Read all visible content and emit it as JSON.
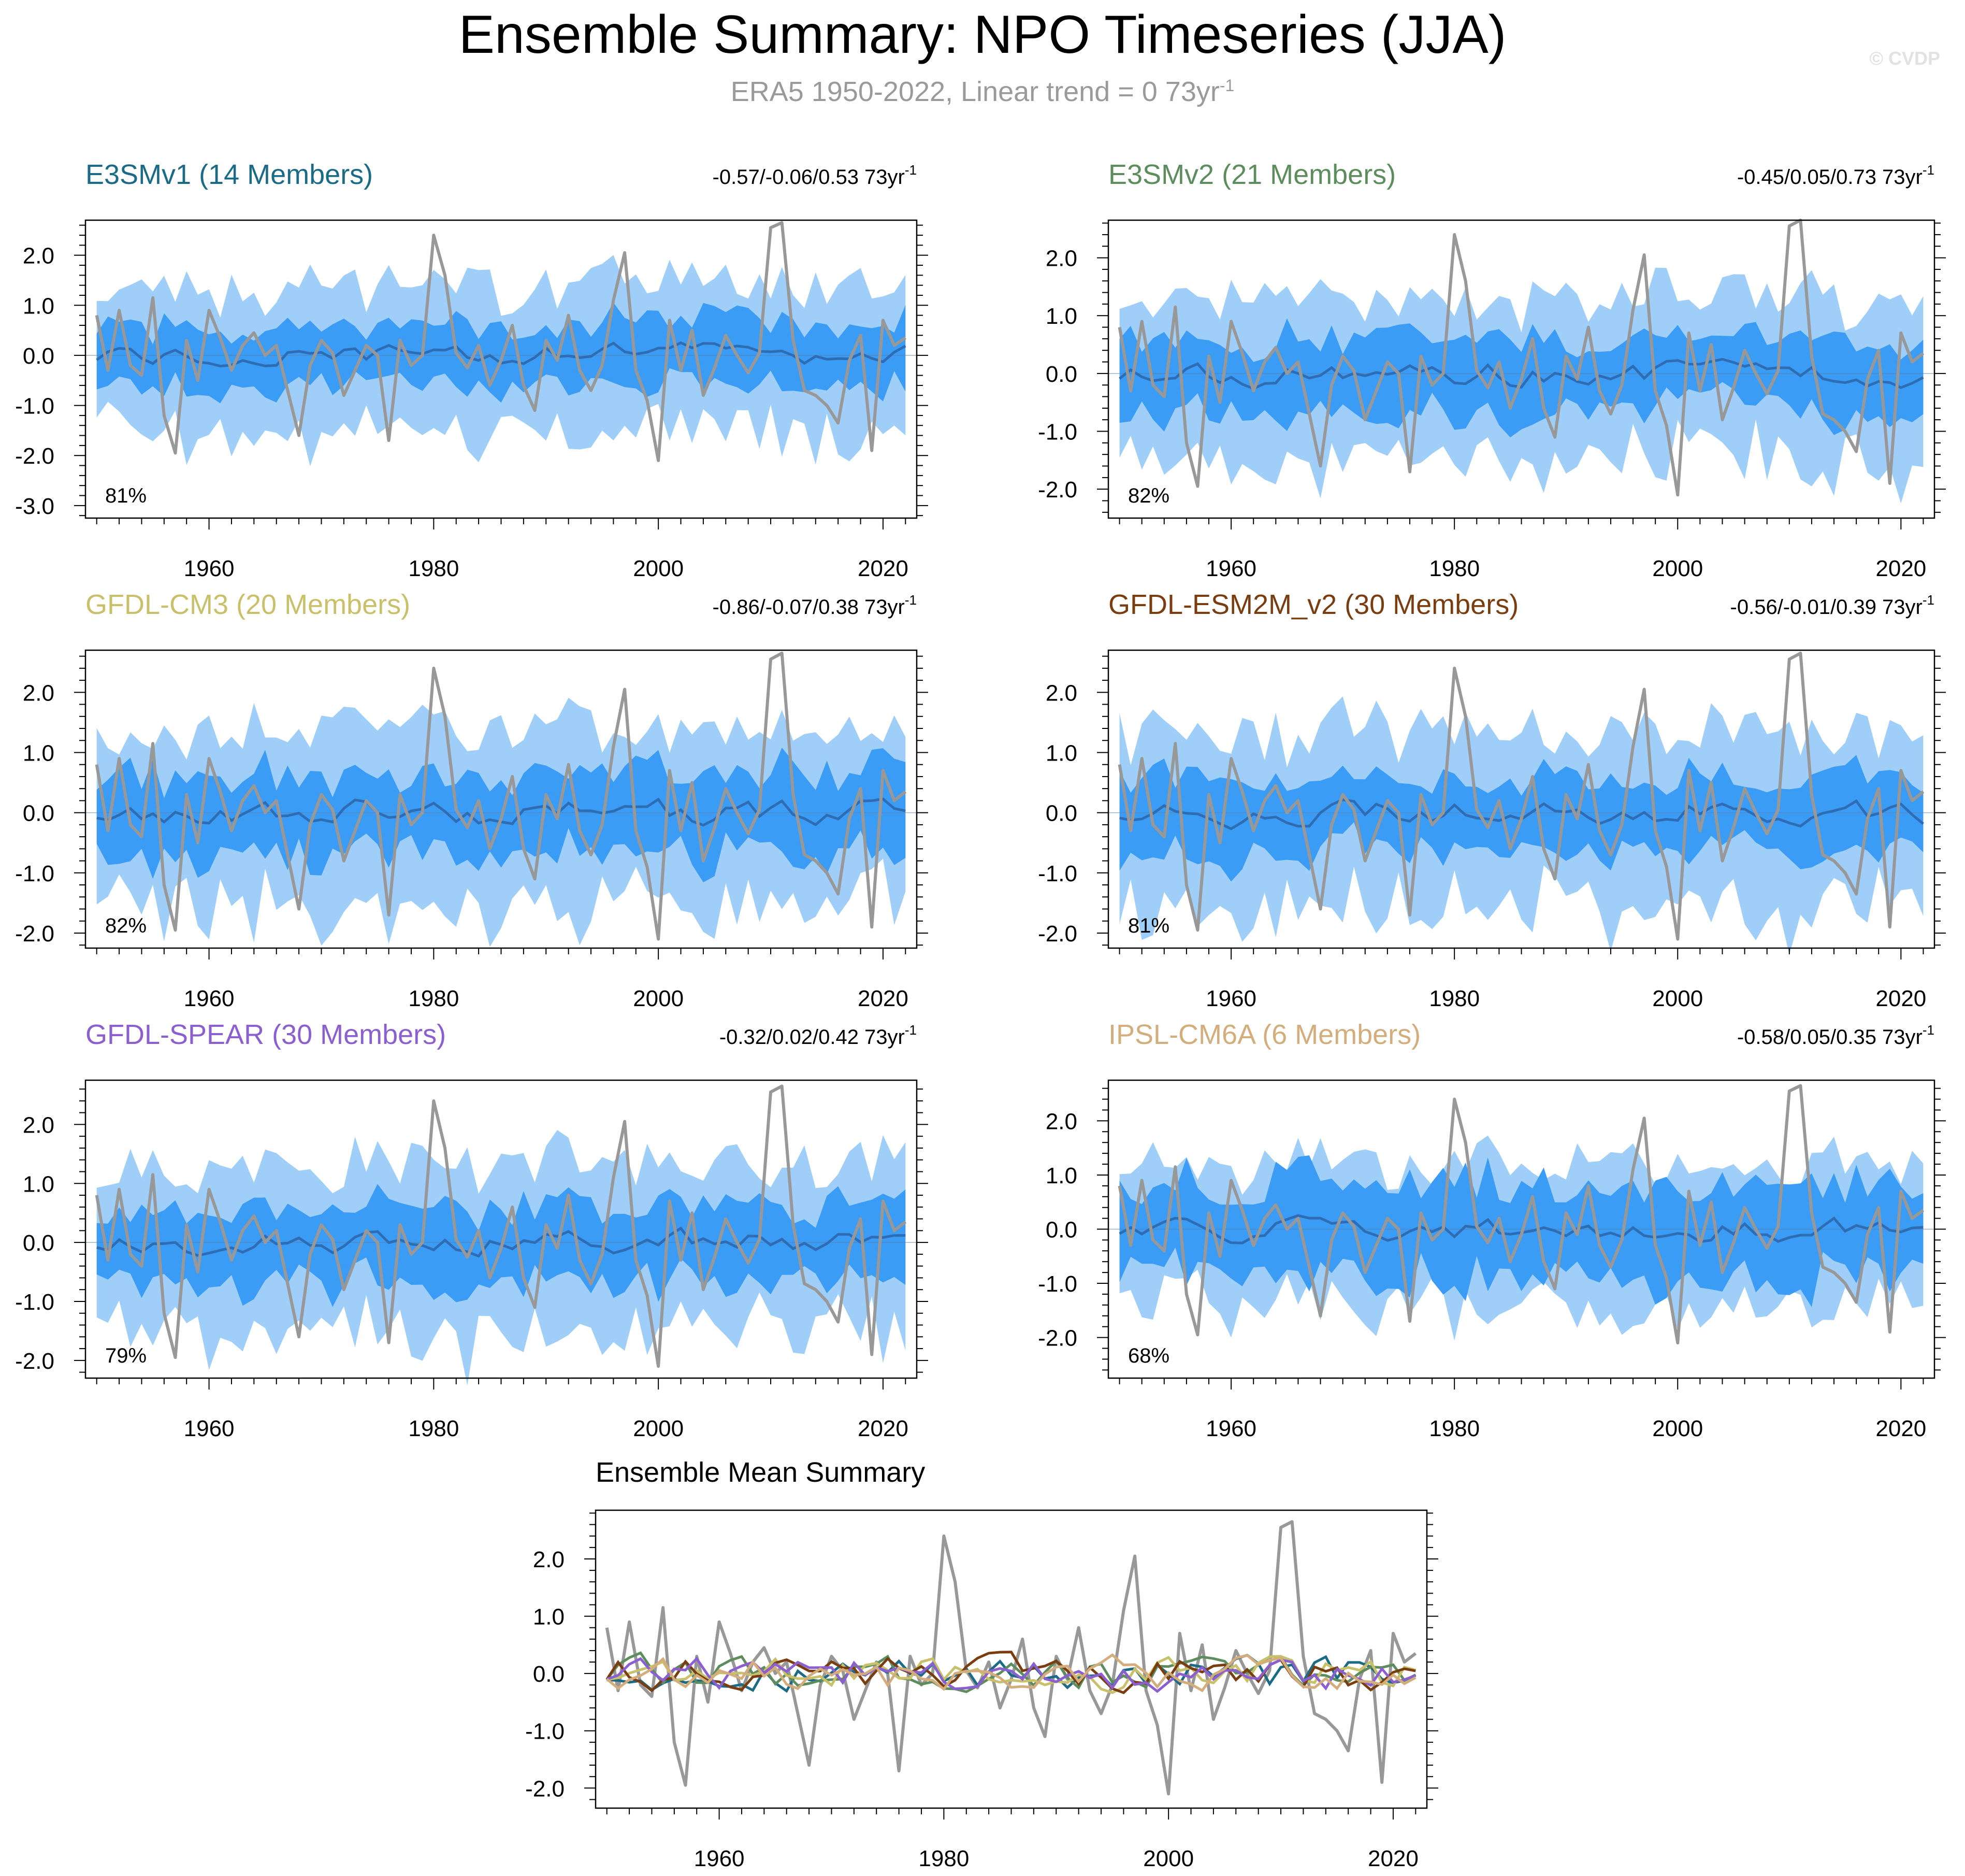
{
  "title": "Ensemble Summary: NPO Timeseries (JJA)",
  "subtitle": {
    "text": "ERA5 1950-2022, Linear trend = 0 73yr",
    "exp": "-1"
  },
  "watermark": "© CVDP",
  "colors": {
    "outer_band": "#9fcff8",
    "inner_band": "#3b9cf5",
    "ens_mean": "#2e6db4",
    "obs": "#989898"
  },
  "chart_data": [
    {
      "id": "e3smv1",
      "type": "line",
      "title": "E3SMv1 (14 Members)",
      "title_color": "#1c6b86",
      "trend_label": "-0.57/-0.06/0.53 73yr",
      "trend_exp": "-1",
      "pct_label": "81%",
      "ylim": [
        -3.25,
        2.7
      ],
      "yticks": [
        2.0,
        1.0,
        0.0,
        -1.0,
        -2.0,
        -3.0
      ],
      "ytick_labels": [
        "2.0",
        "1.0",
        "0.0",
        "-1.0",
        "-2.0",
        "-3.0"
      ],
      "xlim": [
        1949,
        2023
      ],
      "xticks": [
        1960,
        1980,
        2000,
        2020
      ],
      "xtick_labels": [
        "1960",
        "1980",
        "2000",
        "2020"
      ],
      "seed": 11,
      "outer_scale": 1.25,
      "inner_scale": 0.6
    },
    {
      "id": "e3smv2",
      "type": "line",
      "title": "E3SMv2 (21 Members)",
      "title_color": "#5d8c5d",
      "trend_label": "-0.45/0.05/0.73 73yr",
      "trend_exp": "-1",
      "pct_label": "82%",
      "ylim": [
        -2.5,
        2.65
      ],
      "yticks": [
        2.0,
        1.0,
        0.0,
        -1.0,
        -2.0
      ],
      "ytick_labels": [
        "2.0",
        "1.0",
        "0.0",
        "-1.0",
        "-2.0"
      ],
      "xlim": [
        1949,
        2023
      ],
      "xticks": [
        1960,
        1980,
        2000,
        2020
      ],
      "xtick_labels": [
        "1960",
        "1980",
        "2000",
        "2020"
      ],
      "seed": 23,
      "outer_scale": 1.2,
      "inner_scale": 0.65
    },
    {
      "id": "gfdl-cm3",
      "type": "line",
      "title": "GFDL-CM3 (20 Members)",
      "title_color": "#c9c06a",
      "trend_label": "-0.86/-0.07/0.38 73yr",
      "trend_exp": "-1",
      "pct_label": "82%",
      "ylim": [
        -2.25,
        2.7
      ],
      "yticks": [
        2.0,
        1.0,
        0.0,
        -1.0,
        -2.0
      ],
      "ytick_labels": [
        "2.0",
        "1.0",
        "0.0",
        "-1.0",
        "-2.0"
      ],
      "xlim": [
        1949,
        2023
      ],
      "xticks": [
        1960,
        1980,
        2000,
        2020
      ],
      "xtick_labels": [
        "1960",
        "1980",
        "2000",
        "2020"
      ],
      "seed": 37,
      "outer_scale": 1.25,
      "inner_scale": 0.65
    },
    {
      "id": "gfdl-esm2m",
      "type": "line",
      "title": "GFDL-ESM2M_v2 (30 Members)",
      "title_color": "#7a3d10",
      "trend_label": "-0.56/-0.01/0.39 73yr",
      "trend_exp": "-1",
      "pct_label": "81%",
      "ylim": [
        -2.25,
        2.7
      ],
      "yticks": [
        2.0,
        1.0,
        0.0,
        -1.0,
        -2.0
      ],
      "ytick_labels": [
        "2.0",
        "1.0",
        "0.0",
        "-1.0",
        "-2.0"
      ],
      "xlim": [
        1949,
        2023
      ],
      "xticks": [
        1960,
        1980,
        2000,
        2020
      ],
      "xtick_labels": [
        "1960",
        "1980",
        "2000",
        "2020"
      ],
      "seed": 41,
      "outer_scale": 1.2,
      "inner_scale": 0.6
    },
    {
      "id": "gfdl-spear",
      "type": "line",
      "title": "GFDL-SPEAR (30 Members)",
      "title_color": "#8b5fd0",
      "trend_label": "-0.32/0.02/0.42 73yr",
      "trend_exp": "-1",
      "pct_label": "79%",
      "ylim": [
        -2.3,
        2.75
      ],
      "yticks": [
        2.0,
        1.0,
        0.0,
        -1.0,
        -2.0
      ],
      "ytick_labels": [
        "2.0",
        "1.0",
        "0.0",
        "-1.0",
        "-2.0"
      ],
      "xlim": [
        1949,
        2023
      ],
      "xticks": [
        1960,
        1980,
        2000,
        2020
      ],
      "xtick_labels": [
        "1960",
        "1980",
        "2000",
        "2020"
      ],
      "seed": 53,
      "outer_scale": 1.25,
      "inner_scale": 0.6
    },
    {
      "id": "ipsl-cm6a",
      "type": "line",
      "title": "IPSL-CM6A (6 Members)",
      "title_color": "#d4ad7c",
      "trend_label": "-0.58/0.05/0.35 73yr",
      "trend_exp": "-1",
      "pct_label": "68%",
      "ylim": [
        -2.75,
        2.75
      ],
      "yticks": [
        2.0,
        1.0,
        0.0,
        -1.0,
        -2.0
      ],
      "ytick_labels": [
        "2.0",
        "1.0",
        "0.0",
        "-1.0",
        "-2.0"
      ],
      "xlim": [
        1949,
        2023
      ],
      "xticks": [
        1960,
        1980,
        2000,
        2020
      ],
      "xtick_labels": [
        "1960",
        "1980",
        "2000",
        "2020"
      ],
      "seed": 67,
      "outer_scale": 1.1,
      "inner_scale": 0.85
    },
    {
      "id": "ens-mean-summary",
      "type": "line",
      "title": "Ensemble Mean Summary",
      "title_color": "#000000",
      "ylim": [
        -2.35,
        2.85
      ],
      "yticks": [
        2.0,
        1.0,
        0.0,
        -1.0,
        -2.0
      ],
      "ytick_labels": [
        "2.0",
        "1.0",
        "0.0",
        "-1.0",
        "-2.0"
      ],
      "xlim": [
        1949,
        2023
      ],
      "xticks": [
        1960,
        1980,
        2000,
        2020
      ],
      "xtick_labels": [
        "1960",
        "1980",
        "2000",
        "2020"
      ],
      "series_colors": [
        "#1c6b86",
        "#5d8c5d",
        "#c9c06a",
        "#7a3d10",
        "#8b5fd0",
        "#d4ad7c"
      ]
    }
  ],
  "observations": {
    "name": "ERA5",
    "x": [
      1950,
      1951,
      1952,
      1953,
      1954,
      1955,
      1956,
      1957,
      1958,
      1959,
      1960,
      1961,
      1962,
      1963,
      1964,
      1965,
      1966,
      1967,
      1968,
      1969,
      1970,
      1971,
      1972,
      1973,
      1974,
      1975,
      1976,
      1977,
      1978,
      1979,
      1980,
      1981,
      1982,
      1983,
      1984,
      1985,
      1986,
      1987,
      1988,
      1989,
      1990,
      1991,
      1992,
      1993,
      1994,
      1995,
      1996,
      1997,
      1998,
      1999,
      2000,
      2001,
      2002,
      2003,
      2004,
      2005,
      2006,
      2007,
      2008,
      2009,
      2010,
      2011,
      2012,
      2013,
      2014,
      2015,
      2016,
      2017,
      2018,
      2019,
      2020,
      2021,
      2022
    ],
    "values": [
      0.8,
      -0.3,
      0.9,
      -0.2,
      -0.4,
      1.15,
      -1.2,
      -1.95,
      0.3,
      -0.5,
      0.9,
      0.35,
      -0.3,
      0.2,
      0.45,
      0.0,
      0.2,
      -0.7,
      -1.6,
      -0.2,
      0.3,
      0.05,
      -0.8,
      -0.3,
      0.2,
      0.0,
      -1.7,
      0.3,
      -0.2,
      0.0,
      2.4,
      1.6,
      0.05,
      -0.25,
      0.2,
      -0.6,
      -0.1,
      0.6,
      -0.6,
      -1.1,
      0.3,
      -0.1,
      0.8,
      -0.3,
      -0.7,
      -0.2,
      1.1,
      2.05,
      -0.3,
      -0.9,
      -2.1,
      0.7,
      -0.3,
      0.5,
      -0.8,
      -0.25,
      0.4,
      0.0,
      -0.35,
      0.05,
      2.55,
      2.65,
      0.3,
      -0.7,
      -0.8,
      -1.0,
      -1.35,
      -0.1,
      0.4,
      -1.9,
      0.7,
      0.2,
      0.35
    ]
  }
}
